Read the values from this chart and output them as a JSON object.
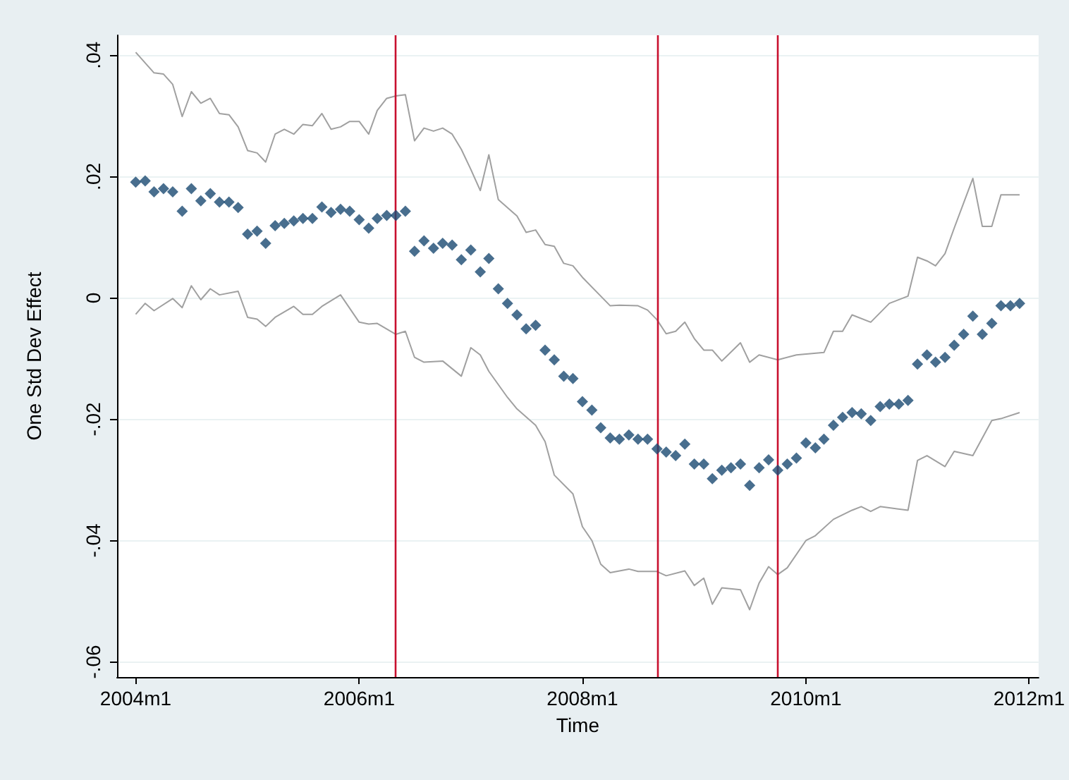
{
  "chart_data": {
    "type": "scatter",
    "xlabel": "Time",
    "ylabel": "One Std Dev Effect",
    "x": [
      "2004-01",
      "2004-02",
      "2004-03",
      "2004-04",
      "2004-05",
      "2004-06",
      "2004-07",
      "2004-08",
      "2004-09",
      "2004-10",
      "2004-11",
      "2004-12",
      "2005-01",
      "2005-02",
      "2005-03",
      "2005-04",
      "2005-05",
      "2005-06",
      "2005-07",
      "2005-08",
      "2005-09",
      "2005-10",
      "2005-11",
      "2005-12",
      "2006-01",
      "2006-02",
      "2006-03",
      "2006-04",
      "2006-05",
      "2006-06",
      "2006-07",
      "2006-08",
      "2006-09",
      "2006-10",
      "2006-11",
      "2006-12",
      "2007-01",
      "2007-02",
      "2007-03",
      "2007-04",
      "2007-05",
      "2007-06",
      "2007-07",
      "2007-08",
      "2007-09",
      "2007-10",
      "2007-11",
      "2007-12",
      "2008-01",
      "2008-02",
      "2008-03",
      "2008-04",
      "2008-05",
      "2008-06",
      "2008-07",
      "2008-08",
      "2008-09",
      "2008-10",
      "2008-11",
      "2008-12",
      "2009-01",
      "2009-02",
      "2009-03",
      "2009-04",
      "2009-05",
      "2009-06",
      "2009-07",
      "2009-08",
      "2009-09",
      "2009-10",
      "2009-11",
      "2009-12",
      "2010-01",
      "2010-02",
      "2010-03",
      "2010-04",
      "2010-05",
      "2010-06",
      "2010-07",
      "2010-08",
      "2010-09",
      "2010-10",
      "2010-11",
      "2010-12",
      "2011-01",
      "2011-02",
      "2011-03",
      "2011-04",
      "2011-05",
      "2011-06",
      "2011-07",
      "2011-08",
      "2011-09",
      "2011-10",
      "2011-11",
      "2011-12"
    ],
    "xlim": [
      "2003-11",
      "2012-02"
    ],
    "xticks": [
      {
        "value": "2004-01",
        "label": "2004m1"
      },
      {
        "value": "2006-01",
        "label": "2006m1"
      },
      {
        "value": "2008-01",
        "label": "2008m1"
      },
      {
        "value": "2010-01",
        "label": "2010m1"
      },
      {
        "value": "2012-01",
        "label": "2012m1"
      }
    ],
    "ylim": [
      -0.0625,
      0.0433
    ],
    "yticks": [
      {
        "value": -0.06,
        "label": "-.06"
      },
      {
        "value": -0.04,
        "label": "-.04"
      },
      {
        "value": -0.02,
        "label": "-.02"
      },
      0,
      {
        "value": 0.02,
        "label": ".02"
      },
      {
        "value": 0.04,
        "label": ".04"
      }
    ],
    "grid": "y",
    "marker": "diamond",
    "series": [
      {
        "color": "#1a4a72",
        "values": [
          0.0191,
          0.0193,
          0.0175,
          0.018,
          0.0175,
          0.0143,
          0.018,
          0.016,
          0.0172,
          0.0158,
          0.0158,
          0.0149,
          0.0105,
          0.011,
          0.009,
          0.0119,
          0.0123,
          0.0127,
          0.0131,
          0.0131,
          0.015,
          0.0141,
          0.0146,
          0.0143,
          0.0129,
          0.0115,
          0.0131,
          0.0136,
          0.0136,
          0.0143,
          0.0077,
          0.0094,
          0.0082,
          0.009,
          0.0087,
          0.0063,
          0.0079,
          0.0043,
          0.0065,
          0.0015,
          -0.0009,
          -0.0028,
          -0.0051,
          -0.0045,
          -0.0086,
          -0.0102,
          -0.0129,
          -0.0133,
          -0.0171,
          -0.0185,
          -0.0214,
          -0.0231,
          -0.0233,
          -0.0226,
          -0.0233,
          -0.0233,
          -0.0249,
          -0.0254,
          -0.026,
          -0.0241,
          -0.0274,
          -0.0274,
          -0.0298,
          -0.0284,
          -0.028,
          -0.0274,
          -0.0309,
          -0.028,
          -0.0267,
          -0.0284,
          -0.0274,
          -0.0264,
          -0.0239,
          -0.0247,
          -0.0233,
          -0.021,
          -0.0197,
          -0.0189,
          -0.0191,
          -0.0202,
          -0.0179,
          -0.0175,
          -0.0175,
          -0.0169,
          -0.0109,
          -0.0094,
          -0.0106,
          -0.0098,
          -0.0078,
          -0.006,
          -0.003,
          -0.006,
          -0.0042,
          -0.0013,
          -0.0013,
          -0.0009
        ]
      },
      {
        "type": "line",
        "color": "#a0a0a0",
        "marker": "none",
        "x": [
          "2004-01",
          "2004-03",
          "2004-04",
          "2004-05",
          "2004-06",
          "2004-07",
          "2004-08",
          "2004-09",
          "2004-10",
          "2004-11",
          "2004-12",
          "2005-01",
          "2005-02",
          "2005-03",
          "2005-04",
          "2005-05",
          "2005-06",
          "2005-07",
          "2005-08",
          "2005-09",
          "2005-10",
          "2005-11",
          "2005-12",
          "2006-01",
          "2006-02",
          "2006-03",
          "2006-04",
          "2006-05",
          "2006-06",
          "2006-07",
          "2006-08",
          "2006-09",
          "2006-10",
          "2006-11",
          "2006-12",
          "2007-01",
          "2007-02",
          "2007-03",
          "2007-04",
          "2007-06",
          "2007-07",
          "2007-08",
          "2007-09",
          "2007-10",
          "2007-11",
          "2007-12",
          "2008-01",
          "2008-03",
          "2008-04",
          "2008-05",
          "2008-07",
          "2008-08",
          "2008-09",
          "2008-10",
          "2008-11",
          "2008-12",
          "2009-01",
          "2009-02",
          "2009-03",
          "2009-04",
          "2009-06",
          "2009-07",
          "2009-08",
          "2009-10",
          "2009-12",
          "2010-03",
          "2010-04",
          "2010-05",
          "2010-06",
          "2010-08",
          "2010-10",
          "2010-12",
          "2011-01",
          "2011-02",
          "2011-03",
          "2011-04",
          "2011-05",
          "2011-07",
          "2011-08",
          "2011-09",
          "2011-10",
          "2011-11",
          "2011-12"
        ],
        "values": [
          0.0405,
          0.0371,
          0.0369,
          0.0352,
          0.0299,
          0.034,
          0.0321,
          0.0329,
          0.0304,
          0.0302,
          0.0282,
          0.0243,
          0.0239,
          0.0224,
          0.027,
          0.0278,
          0.027,
          0.0286,
          0.0284,
          0.0304,
          0.0278,
          0.0282,
          0.0291,
          0.0291,
          0.027,
          0.0309,
          0.0329,
          0.0333,
          0.0335,
          0.0259,
          0.028,
          0.0275,
          0.028,
          0.027,
          0.0245,
          0.0212,
          0.0177,
          0.0236,
          0.0162,
          0.0135,
          0.0108,
          0.0112,
          0.0088,
          0.0085,
          0.0057,
          0.0053,
          0.0034,
          0.0003,
          -0.0013,
          -0.0012,
          -0.0013,
          -0.002,
          -0.0036,
          -0.0059,
          -0.0055,
          -0.004,
          -0.0067,
          -0.0086,
          -0.0086,
          -0.0104,
          -0.0074,
          -0.0106,
          -0.0094,
          -0.0102,
          -0.0094,
          -0.009,
          -0.0055,
          -0.0055,
          -0.0028,
          -0.004,
          -0.0009,
          0.0003,
          0.0067,
          0.0061,
          0.0053,
          0.0073,
          0.0115,
          0.0197,
          0.0118,
          0.0118,
          0.017,
          0.017,
          0.017
        ]
      },
      {
        "type": "line",
        "color": "#a0a0a0",
        "marker": "none",
        "x": [
          "2004-01",
          "2004-02",
          "2004-03",
          "2004-05",
          "2004-06",
          "2004-07",
          "2004-08",
          "2004-09",
          "2004-10",
          "2004-12",
          "2005-01",
          "2005-02",
          "2005-03",
          "2005-04",
          "2005-06",
          "2005-07",
          "2005-08",
          "2005-09",
          "2005-11",
          "2006-01",
          "2006-02",
          "2006-03",
          "2006-05",
          "2006-06",
          "2006-07",
          "2006-08",
          "2006-10",
          "2006-12",
          "2007-01",
          "2007-02",
          "2007-03",
          "2007-05",
          "2007-06",
          "2007-08",
          "2007-09",
          "2007-10",
          "2007-12",
          "2008-01",
          "2008-02",
          "2008-03",
          "2008-04",
          "2008-06",
          "2008-07",
          "2008-09",
          "2008-10",
          "2008-12",
          "2009-01",
          "2009-02",
          "2009-03",
          "2009-04",
          "2009-06",
          "2009-07",
          "2009-08",
          "2009-09",
          "2009-10",
          "2009-11",
          "2010-01",
          "2010-02",
          "2010-04",
          "2010-06",
          "2010-07",
          "2010-08",
          "2010-09",
          "2010-12",
          "2011-01",
          "2011-02",
          "2011-04",
          "2011-05",
          "2011-07",
          "2011-09",
          "2011-10",
          "2011-12"
        ],
        "values": [
          -0.0027,
          -0.0009,
          -0.0021,
          -0.0001,
          -0.0016,
          0.002,
          -0.0003,
          0.0015,
          0.0005,
          0.0011,
          -0.0032,
          -0.0035,
          -0.0047,
          -0.0032,
          -0.0014,
          -0.0027,
          -0.0027,
          -0.0014,
          0.0005,
          -0.004,
          -0.0043,
          -0.0042,
          -0.006,
          -0.0055,
          -0.0098,
          -0.0106,
          -0.0104,
          -0.0129,
          -0.0082,
          -0.0094,
          -0.0121,
          -0.0164,
          -0.0183,
          -0.021,
          -0.0237,
          -0.0292,
          -0.0323,
          -0.0377,
          -0.04,
          -0.0439,
          -0.0453,
          -0.0447,
          -0.0451,
          -0.0451,
          -0.0458,
          -0.045,
          -0.0474,
          -0.0462,
          -0.0505,
          -0.0478,
          -0.0481,
          -0.0514,
          -0.047,
          -0.0443,
          -0.0456,
          -0.0445,
          -0.04,
          -0.0392,
          -0.0365,
          -0.035,
          -0.0344,
          -0.0352,
          -0.0344,
          -0.035,
          -0.0268,
          -0.026,
          -0.0278,
          -0.0253,
          -0.026,
          -0.0202,
          -0.0199,
          -0.0189
        ]
      }
    ],
    "ref_lines": [
      {
        "axis": "x",
        "value": "2006-05",
        "color": "#c8102e"
      },
      {
        "axis": "x",
        "value": "2008-09",
        "color": "#c8102e"
      },
      {
        "axis": "x",
        "value": "2009-10",
        "color": "#c8102e"
      }
    ]
  }
}
